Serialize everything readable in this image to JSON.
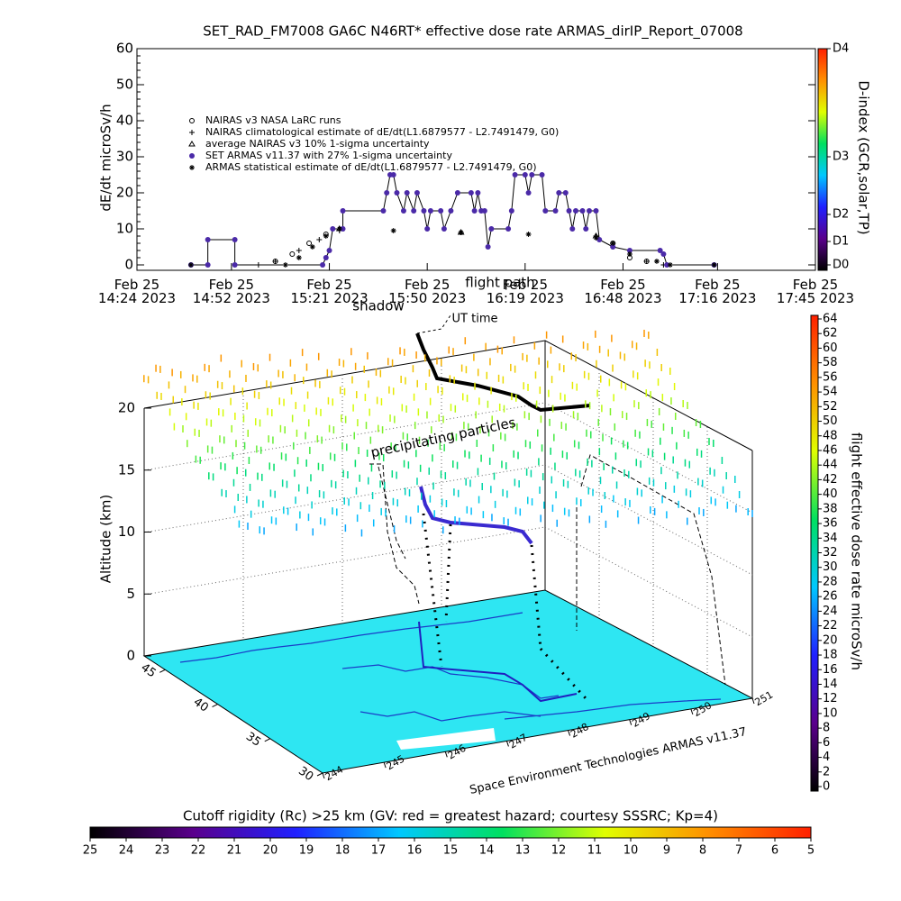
{
  "chart_data": [
    {
      "type": "line",
      "title": "SET_RAD_FM7008  GA6C N46RT* effective dose rate ARMAS_dirIP_Report_07008",
      "ylabel": "dE/dt microSv/h",
      "y2label": "D-index (GCR,solar,TP)",
      "ylim": [
        -1.5,
        60
      ],
      "yticks": [
        0,
        10,
        20,
        30,
        40,
        50,
        60
      ],
      "y2lim": [
        -1.5,
        60
      ],
      "y2ticks": [
        {
          "value": 0,
          "label": "D0"
        },
        {
          "value": 6.5,
          "label": "D1"
        },
        {
          "value": 14,
          "label": "D2"
        },
        {
          "value": 30,
          "label": "D3"
        },
        {
          "value": 60,
          "label": "D4"
        }
      ],
      "colormap": [
        "#000000",
        "#5a008c",
        "#2020ff",
        "#00c8ff",
        "#00e060",
        "#e0ff00",
        "#ff9000",
        "#ff2000"
      ],
      "xlim": [
        "2023-02-25 14:24",
        "2023-02-25 17:45"
      ],
      "xticks": [
        {
          "value": "2023-02-25 14:24",
          "label": [
            "Feb 25",
            "14:24 2023"
          ]
        },
        {
          "value": "2023-02-25 14:52",
          "label": [
            "Feb 25",
            "14:52 2023"
          ]
        },
        {
          "value": "2023-02-25 15:21",
          "label": [
            "Feb 25",
            "15:21 2023"
          ]
        },
        {
          "value": "2023-02-25 15:50",
          "label": [
            "Feb 25",
            "15:50 2023"
          ]
        },
        {
          "value": "2023-02-25 16:19",
          "label": [
            "Feb 25",
            "16:19 2023"
          ]
        },
        {
          "value": "2023-02-25 16:48",
          "label": [
            "Feb 25",
            "16:48 2023"
          ]
        },
        {
          "value": "2023-02-25 17:16",
          "label": [
            "Feb 25",
            "17:16 2023"
          ]
        },
        {
          "value": "2023-02-25 17:45",
          "label": [
            "Feb 25",
            "17:45 2023"
          ]
        }
      ],
      "annotations": [
        "flight path",
        "shadow",
        "UT time"
      ],
      "series": [
        {
          "name": "NAIRAS v3 NASA LaRC runs",
          "marker": "circle",
          "color": "#000000",
          "x": [
            "2023-02-25 15:05",
            "2023-02-25 15:10",
            "2023-02-25 15:15",
            "2023-02-25 15:20",
            "2023-02-25 16:45",
            "2023-02-25 16:50",
            "2023-02-25 16:55"
          ],
          "values": [
            1,
            3,
            6,
            8.5,
            6,
            2,
            1
          ]
        },
        {
          "name": "NAIRAS climatological estimate of dE/dt(L1.6879577 - L2.7491479, G0)",
          "marker": "plus",
          "color": "#000000",
          "x": [
            "2023-02-25 15:00",
            "2023-02-25 15:05",
            "2023-02-25 15:12",
            "2023-02-25 15:18",
            "2023-02-25 15:24",
            "2023-02-25 16:00",
            "2023-02-25 16:40",
            "2023-02-25 16:45",
            "2023-02-25 16:55",
            "2023-02-25 17:00"
          ],
          "values": [
            0,
            1,
            4,
            7,
            9.5,
            9,
            8,
            5,
            1,
            0
          ]
        },
        {
          "name": "average NAIRAS v3 10% 1-sigma uncertainty",
          "marker": "triangle",
          "color": "#000000",
          "x": [
            "2023-02-25 15:24",
            "2023-02-25 16:00",
            "2023-02-25 16:40"
          ],
          "values": [
            10,
            9,
            8
          ]
        },
        {
          "name": "SET ARMAS v11.37 with 27% 1-sigma uncertainty",
          "marker": "dot",
          "color": "#4b2aa8",
          "line_color": "#000000",
          "x": [
            "2023-02-25 14:40",
            "2023-02-25 14:45",
            "2023-02-25 14:45",
            "2023-02-25 14:53",
            "2023-02-25 14:53",
            "2023-02-25 15:19",
            "2023-02-25 15:20",
            "2023-02-25 15:21",
            "2023-02-25 15:22",
            "2023-02-25 15:25",
            "2023-02-25 15:25",
            "2023-02-25 15:37",
            "2023-02-25 15:38",
            "2023-02-25 15:39",
            "2023-02-25 15:40",
            "2023-02-25 15:41",
            "2023-02-25 15:43",
            "2023-02-25 15:44",
            "2023-02-25 15:46",
            "2023-02-25 15:47",
            "2023-02-25 15:49",
            "2023-02-25 15:50",
            "2023-02-25 15:51",
            "2023-02-25 15:54",
            "2023-02-25 15:55",
            "2023-02-25 15:57",
            "2023-02-25 15:59",
            "2023-02-25 16:03",
            "2023-02-25 16:04",
            "2023-02-25 16:05",
            "2023-02-25 16:06",
            "2023-02-25 16:07",
            "2023-02-25 16:08",
            "2023-02-25 16:09",
            "2023-02-25 16:14",
            "2023-02-25 16:15",
            "2023-02-25 16:16",
            "2023-02-25 16:19",
            "2023-02-25 16:20",
            "2023-02-25 16:21",
            "2023-02-25 16:24",
            "2023-02-25 16:25",
            "2023-02-25 16:28",
            "2023-02-25 16:29",
            "2023-02-25 16:31",
            "2023-02-25 16:32",
            "2023-02-25 16:33",
            "2023-02-25 16:34",
            "2023-02-25 16:36",
            "2023-02-25 16:37",
            "2023-02-25 16:38",
            "2023-02-25 16:40",
            "2023-02-25 16:41",
            "2023-02-25 16:45",
            "2023-02-25 16:50",
            "2023-02-25 16:59",
            "2023-02-25 17:00",
            "2023-02-25 17:01",
            "2023-02-25 17:15"
          ],
          "values": [
            0,
            0,
            7,
            7,
            0,
            0,
            2,
            4,
            10,
            10,
            15,
            15,
            20,
            25,
            25,
            20,
            15,
            20,
            15,
            20,
            15,
            10,
            15,
            15,
            10,
            15,
            20,
            20,
            15,
            20,
            15,
            15,
            5,
            10,
            10,
            15,
            25,
            25,
            20,
            25,
            25,
            15,
            15,
            20,
            20,
            15,
            10,
            15,
            15,
            10,
            15,
            15,
            7,
            5,
            4,
            4,
            3,
            0,
            0
          ]
        },
        {
          "name": "ARMAS statistical estimate of dE/dt(L1.6879577 - L2.7491479, G0)",
          "marker": "star",
          "color": "#000000",
          "x": [
            "2023-02-25 14:40",
            "2023-02-25 15:08",
            "2023-02-25 15:12",
            "2023-02-25 15:16",
            "2023-02-25 15:20",
            "2023-02-25 15:24",
            "2023-02-25 15:40",
            "2023-02-25 16:00",
            "2023-02-25 16:20",
            "2023-02-25 16:40",
            "2023-02-25 16:45",
            "2023-02-25 16:50",
            "2023-02-25 16:58",
            "2023-02-25 17:02",
            "2023-02-25 17:15"
          ],
          "values": [
            0,
            0,
            2,
            5,
            8,
            10,
            9.5,
            9,
            8.5,
            7.5,
            6,
            3,
            1,
            0,
            0
          ]
        }
      ]
    },
    {
      "type": "scatter3d",
      "zlabel": "Altitude (km)",
      "zlim": [
        0,
        20
      ],
      "zticks": [
        0,
        5,
        10,
        15,
        20
      ],
      "latlim": [
        30,
        47
      ],
      "latticks": [
        30,
        35,
        40,
        45
      ],
      "lonlim": [
        244,
        251
      ],
      "lonticks": [
        244,
        245,
        246,
        247,
        248,
        249,
        250,
        251
      ],
      "annotations": [
        "precipitating particles"
      ],
      "credit": "Space Environment Technologies ARMAS v11.37",
      "clabel": "flight effective dose rate microSv/h",
      "clim": [
        0,
        64
      ],
      "cticks": [
        0,
        2,
        4,
        6,
        8,
        10,
        12,
        14,
        16,
        18,
        20,
        22,
        24,
        26,
        28,
        30,
        32,
        34,
        36,
        38,
        40,
        42,
        44,
        46,
        48,
        50,
        52,
        54,
        56,
        58,
        60,
        62,
        64
      ]
    },
    {
      "type": "colorbar",
      "title": "Cutoff rigidity (Rc) >25 km (GV: red = greatest hazard; courtesy SSSRC; Kp=4)",
      "xlim": [
        25,
        5
      ],
      "xticks": [
        25,
        24,
        23,
        22,
        21,
        20,
        19,
        18,
        17,
        16,
        15,
        14,
        13,
        12,
        11,
        10,
        9,
        8,
        7,
        6,
        5
      ]
    }
  ]
}
